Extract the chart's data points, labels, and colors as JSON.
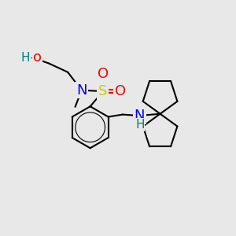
{
  "background_color": "#e8e8e8",
  "atom_colors": {
    "O": "#ff0000",
    "N": "#0000ff",
    "S": "#cccc00",
    "H": "#008080",
    "C": "#000000"
  },
  "bond_lw": 1.5,
  "fig_w": 3.0,
  "fig_h": 3.0,
  "dpi": 100,
  "xlim": [
    0,
    10
  ],
  "ylim": [
    0,
    10
  ]
}
